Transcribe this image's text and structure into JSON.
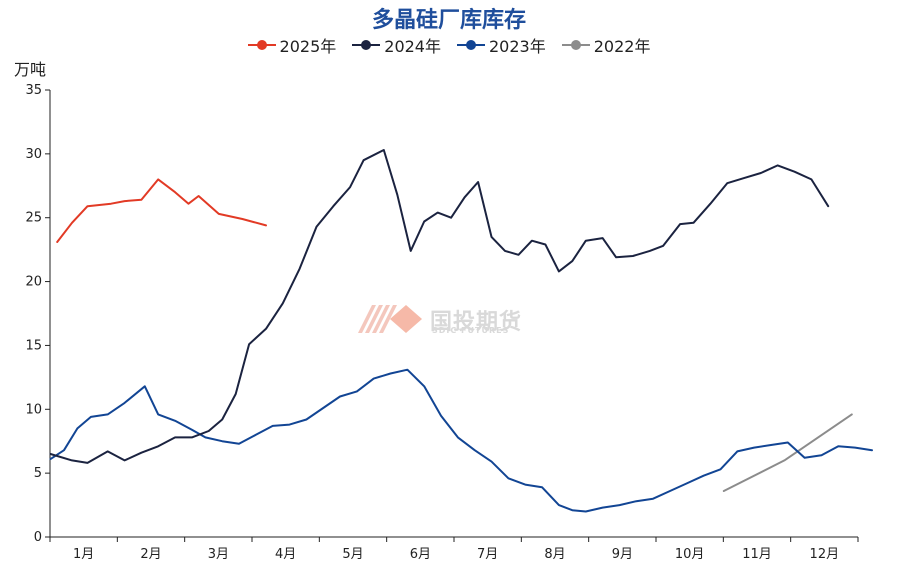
{
  "chart_data": {
    "type": "line",
    "title": "多晶硅厂库库存",
    "ylabel": "万吨",
    "xlabel": "",
    "ylim": [
      0,
      35
    ],
    "yticks": [
      0,
      5,
      10,
      15,
      20,
      25,
      30,
      35
    ],
    "x_tick_labels": [
      "1月",
      "2月",
      "3月",
      "4月",
      "5月",
      "6月",
      "7月",
      "8月",
      "9月",
      "10月",
      "11月",
      "12月"
    ],
    "legend_position": "top-center",
    "grid": false,
    "series": [
      {
        "name": "2025年",
        "color": "#e23a25",
        "x": [
          0.1,
          0.32,
          0.55,
          0.9,
          1.1,
          1.35,
          1.6,
          1.85,
          2.05,
          2.2,
          2.5,
          2.85,
          3.2
        ],
        "values": [
          23.1,
          24.6,
          25.9,
          26.1,
          26.3,
          26.4,
          28.0,
          27.0,
          26.1,
          26.7,
          25.3,
          24.9,
          24.4
        ]
      },
      {
        "name": "2024年",
        "color": "#1b2340",
        "x": [
          0.0,
          0.32,
          0.55,
          0.85,
          1.1,
          1.35,
          1.6,
          1.85,
          2.1,
          2.35,
          2.55,
          2.75,
          2.95,
          3.2,
          3.45,
          3.7,
          3.95,
          4.2,
          4.45,
          4.65,
          4.95,
          5.15,
          5.35,
          5.55,
          5.75,
          5.95,
          6.15,
          6.35,
          6.55,
          6.75,
          6.95,
          7.15,
          7.35,
          7.55,
          7.75,
          7.95,
          8.2,
          8.4,
          8.65,
          8.9,
          9.1,
          9.35,
          9.55,
          9.8,
          10.05,
          10.3,
          10.55,
          10.8,
          11.05,
          11.3,
          11.55
        ],
        "values": [
          6.5,
          6.0,
          5.8,
          6.7,
          6.0,
          6.6,
          7.1,
          7.8,
          7.8,
          8.3,
          9.2,
          11.2,
          15.1,
          16.3,
          18.3,
          21.0,
          24.3,
          25.9,
          27.4,
          29.5,
          30.3,
          26.8,
          22.4,
          24.7,
          25.4,
          25.0,
          26.6,
          27.8,
          23.5,
          22.4,
          22.1,
          23.2,
          22.9,
          20.8,
          21.6,
          23.2,
          23.4,
          21.9,
          22.0,
          22.4,
          22.8,
          24.5,
          24.6,
          26.1,
          27.7,
          28.1,
          28.5,
          29.1,
          28.6,
          28.0,
          25.9
        ]
      },
      {
        "name": "2023年",
        "color": "#124594",
        "x": [
          0.0,
          0.2,
          0.4,
          0.6,
          0.85,
          1.1,
          1.4,
          1.6,
          1.85,
          2.1,
          2.3,
          2.55,
          2.8,
          3.05,
          3.3,
          3.55,
          3.8,
          4.05,
          4.3,
          4.55,
          4.8,
          5.05,
          5.3,
          5.55,
          5.8,
          6.05,
          6.3,
          6.55,
          6.8,
          7.05,
          7.3,
          7.55,
          7.75,
          7.95,
          8.2,
          8.45,
          8.7,
          8.95,
          9.2,
          9.45,
          9.7,
          9.95,
          10.2,
          10.45,
          10.7,
          10.95,
          11.2,
          11.45,
          11.7,
          11.95,
          12.2
        ],
        "values": [
          6.1,
          6.8,
          8.5,
          9.4,
          9.6,
          10.5,
          11.8,
          9.6,
          9.1,
          8.4,
          7.8,
          7.5,
          7.3,
          8.0,
          8.7,
          8.8,
          9.2,
          10.1,
          11.0,
          11.4,
          12.4,
          12.8,
          13.1,
          11.8,
          9.5,
          7.8,
          6.8,
          5.9,
          4.6,
          4.1,
          3.9,
          2.5,
          2.1,
          2.0,
          2.3,
          2.5,
          2.8,
          3.0,
          3.6,
          4.2,
          4.8,
          5.3,
          6.7,
          7.0,
          7.2,
          7.4,
          6.2,
          6.4,
          7.1,
          7.0,
          6.8
        ]
      },
      {
        "name": "2022年",
        "color": "#8c8c8c",
        "x": [
          10.0,
          10.9,
          11.9
        ],
        "values": [
          3.6,
          6.0,
          9.6
        ]
      }
    ]
  },
  "watermark": {
    "cn": "国投期货",
    "en": "SDIC FUTURES"
  }
}
